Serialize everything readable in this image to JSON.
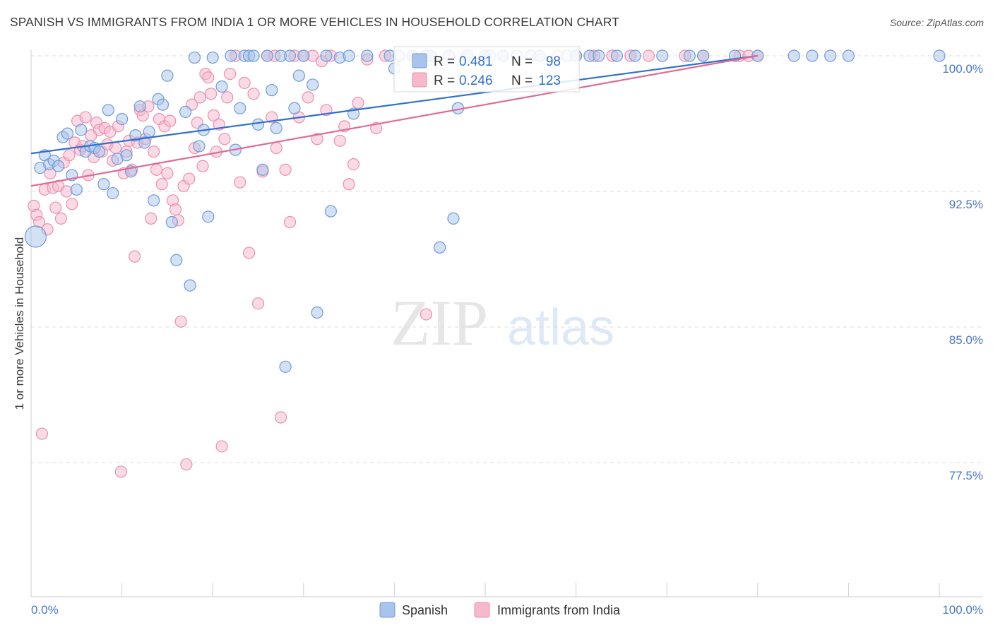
{
  "title": "SPANISH VS IMMIGRANTS FROM INDIA 1 OR MORE VEHICLES IN HOUSEHOLD CORRELATION CHART",
  "source": "Source: ZipAtlas.com",
  "watermark": {
    "zip": "ZIP",
    "atlas": "atlas"
  },
  "colors": {
    "spanish_fill": "#a8c4ec",
    "spanish_stroke": "#6f9bd8",
    "spanish_line": "#2f6fce",
    "india_fill": "#f6b8cb",
    "india_stroke": "#ec8fae",
    "india_line": "#e06a94",
    "tick_label": "#4a78c8",
    "grid": "#dcdcdc"
  },
  "chart_data": {
    "type": "scatter",
    "title": "SPANISH VS IMMIGRANTS FROM INDIA 1 OR MORE VEHICLES IN HOUSEHOLD CORRELATION CHART",
    "xlabel": "",
    "ylabel": "1 or more Vehicles in Household",
    "xlim": [
      0,
      100
    ],
    "ylim": [
      70.5,
      100.8
    ],
    "x_tick_labels": [
      "0.0%",
      "100.0%"
    ],
    "y_ticks": [
      77.5,
      85.0,
      92.5,
      100.0
    ],
    "y_tick_labels": [
      "77.5%",
      "85.0%",
      "92.5%",
      "100.0%"
    ],
    "grid": true,
    "legend_position": "bottom-center",
    "stats_box": [
      {
        "r_label": "R = ",
        "r_value": "0.481",
        "n_label": "N = ",
        "n_value": "98"
      },
      {
        "r_label": "R = ",
        "r_value": "0.246",
        "n_label": "N = ",
        "n_value": "123"
      }
    ],
    "series": [
      {
        "name": "Spanish",
        "trendline": {
          "x": [
            0,
            80
          ],
          "y": [
            94.6,
            100.0
          ]
        },
        "points": [
          [
            0.5,
            90.0
          ],
          [
            1.0,
            93.8
          ],
          [
            1.5,
            94.5
          ],
          [
            2.0,
            94.0
          ],
          [
            2.5,
            94.2
          ],
          [
            3.0,
            93.9
          ],
          [
            3.5,
            95.5
          ],
          [
            4.0,
            95.7
          ],
          [
            4.5,
            93.4
          ],
          [
            5.0,
            92.6
          ],
          [
            5.5,
            95.9
          ],
          [
            6.0,
            94.7
          ],
          [
            6.5,
            95.0
          ],
          [
            7.0,
            94.9
          ],
          [
            7.5,
            94.7
          ],
          [
            8.0,
            92.9
          ],
          [
            8.5,
            97.0
          ],
          [
            9.0,
            92.4
          ],
          [
            9.5,
            94.3
          ],
          [
            10.0,
            96.5
          ],
          [
            10.5,
            94.5
          ],
          [
            11.0,
            93.6
          ],
          [
            11.5,
            95.6
          ],
          [
            12.0,
            97.2
          ],
          [
            12.5,
            95.2
          ],
          [
            13.0,
            95.8
          ],
          [
            13.5,
            92.0
          ],
          [
            14.0,
            97.6
          ],
          [
            14.5,
            97.3
          ],
          [
            15.0,
            98.9
          ],
          [
            15.5,
            90.8
          ],
          [
            16.0,
            88.7
          ],
          [
            17.0,
            96.9
          ],
          [
            17.5,
            87.3
          ],
          [
            18.0,
            99.9
          ],
          [
            18.5,
            95.0
          ],
          [
            19.0,
            95.9
          ],
          [
            19.5,
            91.1
          ],
          [
            20.0,
            99.9
          ],
          [
            21.0,
            98.3
          ],
          [
            22.0,
            100.0
          ],
          [
            22.5,
            94.8
          ],
          [
            23.0,
            97.1
          ],
          [
            23.5,
            100.0
          ],
          [
            24.0,
            100.0
          ],
          [
            24.5,
            100.0
          ],
          [
            25.0,
            96.2
          ],
          [
            25.5,
            93.7
          ],
          [
            26.0,
            100.0
          ],
          [
            26.5,
            98.1
          ],
          [
            27.0,
            96.0
          ],
          [
            27.5,
            100.0
          ],
          [
            28.0,
            82.8
          ],
          [
            28.5,
            100.0
          ],
          [
            29.0,
            97.1
          ],
          [
            29.5,
            98.9
          ],
          [
            30.0,
            100.0
          ],
          [
            31.0,
            98.4
          ],
          [
            31.5,
            85.8
          ],
          [
            32.5,
            100.0
          ],
          [
            33.0,
            91.4
          ],
          [
            34.0,
            99.9
          ],
          [
            35.0,
            100.0
          ],
          [
            35.5,
            96.8
          ],
          [
            37.0,
            100.0
          ],
          [
            39.5,
            100.0
          ],
          [
            40.0,
            99.3
          ],
          [
            40.5,
            100.0
          ],
          [
            42.0,
            100.0
          ],
          [
            43.5,
            100.0
          ],
          [
            44.0,
            100.0
          ],
          [
            45.0,
            89.4
          ],
          [
            46.0,
            100.0
          ],
          [
            46.5,
            91.0
          ],
          [
            47.0,
            97.1
          ],
          [
            48.0,
            100.0
          ],
          [
            50.0,
            100.0
          ],
          [
            50.5,
            100.0
          ],
          [
            52.0,
            100.0
          ],
          [
            53.5,
            100.0
          ],
          [
            55.0,
            100.0
          ],
          [
            56.0,
            100.0
          ],
          [
            59.0,
            100.0
          ],
          [
            60.0,
            100.0
          ],
          [
            61.5,
            100.0
          ],
          [
            62.5,
            100.0
          ],
          [
            64.5,
            100.0
          ],
          [
            66.5,
            100.0
          ],
          [
            69.5,
            100.0
          ],
          [
            72.5,
            100.0
          ],
          [
            74.0,
            100.0
          ],
          [
            77.5,
            100.0
          ],
          [
            80.0,
            100.0
          ],
          [
            84.0,
            100.0
          ],
          [
            86.0,
            100.0
          ],
          [
            88.0,
            100.0
          ],
          [
            90.0,
            100.0
          ],
          [
            100.0,
            100.0
          ]
        ]
      },
      {
        "name": "Immigrants from India",
        "trendline": {
          "x": [
            0,
            80
          ],
          "y": [
            92.8,
            100.0
          ]
        },
        "points": [
          [
            0.3,
            91.7
          ],
          [
            0.6,
            91.2
          ],
          [
            0.9,
            90.8
          ],
          [
            1.2,
            79.1
          ],
          [
            1.5,
            92.6
          ],
          [
            1.8,
            90.4
          ],
          [
            2.1,
            93.5
          ],
          [
            2.4,
            92.7
          ],
          [
            2.7,
            91.6
          ],
          [
            3.0,
            92.8
          ],
          [
            3.3,
            91.0
          ],
          [
            3.6,
            94.1
          ],
          [
            3.9,
            92.5
          ],
          [
            4.2,
            94.5
          ],
          [
            4.5,
            91.8
          ],
          [
            4.8,
            95.2
          ],
          [
            5.1,
            96.4
          ],
          [
            5.4,
            94.8
          ],
          [
            5.7,
            95.0
          ],
          [
            6.0,
            96.6
          ],
          [
            6.3,
            93.4
          ],
          [
            6.6,
            95.6
          ],
          [
            6.9,
            94.4
          ],
          [
            7.2,
            96.3
          ],
          [
            7.5,
            95.9
          ],
          [
            7.8,
            94.7
          ],
          [
            8.1,
            96.0
          ],
          [
            8.4,
            95.1
          ],
          [
            8.7,
            95.8
          ],
          [
            9.0,
            94.2
          ],
          [
            9.3,
            94.9
          ],
          [
            9.6,
            96.1
          ],
          [
            9.9,
            77.0
          ],
          [
            10.2,
            93.5
          ],
          [
            10.5,
            94.7
          ],
          [
            10.8,
            95.3
          ],
          [
            11.1,
            93.7
          ],
          [
            11.4,
            88.9
          ],
          [
            11.7,
            95.2
          ],
          [
            12.0,
            97.0
          ],
          [
            12.3,
            96.7
          ],
          [
            12.6,
            95.4
          ],
          [
            12.9,
            97.2
          ],
          [
            13.2,
            91.0
          ],
          [
            13.5,
            94.7
          ],
          [
            13.8,
            93.7
          ],
          [
            14.1,
            96.5
          ],
          [
            14.4,
            92.9
          ],
          [
            14.7,
            96.1
          ],
          [
            15.0,
            93.5
          ],
          [
            15.3,
            96.4
          ],
          [
            15.6,
            92.0
          ],
          [
            15.9,
            91.5
          ],
          [
            16.2,
            90.9
          ],
          [
            16.5,
            85.3
          ],
          [
            16.8,
            92.8
          ],
          [
            17.1,
            77.4
          ],
          [
            17.4,
            93.2
          ],
          [
            17.7,
            97.3
          ],
          [
            18.0,
            94.9
          ],
          [
            18.3,
            96.3
          ],
          [
            18.6,
            97.7
          ],
          [
            18.9,
            93.9
          ],
          [
            19.2,
            99.0
          ],
          [
            19.5,
            98.8
          ],
          [
            19.8,
            97.9
          ],
          [
            20.1,
            96.7
          ],
          [
            20.4,
            94.7
          ],
          [
            20.7,
            96.2
          ],
          [
            21.0,
            78.4
          ],
          [
            21.3,
            95.4
          ],
          [
            21.6,
            97.7
          ],
          [
            21.9,
            99.0
          ],
          [
            22.5,
            100.0
          ],
          [
            23.0,
            93.0
          ],
          [
            23.5,
            98.5
          ],
          [
            24.0,
            89.1
          ],
          [
            24.5,
            97.9
          ],
          [
            25.0,
            86.3
          ],
          [
            25.5,
            93.6
          ],
          [
            26.0,
            100.0
          ],
          [
            26.5,
            96.6
          ],
          [
            27.0,
            94.9
          ],
          [
            27.5,
            80.0
          ],
          [
            28.0,
            93.7
          ],
          [
            28.5,
            90.8
          ],
          [
            29.0,
            100.0
          ],
          [
            29.5,
            96.6
          ],
          [
            30.0,
            100.0
          ],
          [
            30.5,
            97.7
          ],
          [
            31.0,
            100.0
          ],
          [
            31.5,
            95.4
          ],
          [
            32.0,
            99.7
          ],
          [
            32.5,
            97.0
          ],
          [
            33.0,
            100.0
          ],
          [
            34.0,
            95.3
          ],
          [
            34.5,
            96.1
          ],
          [
            35.0,
            92.9
          ],
          [
            35.5,
            94.0
          ],
          [
            36.0,
            97.4
          ],
          [
            37.0,
            99.8
          ],
          [
            38.0,
            96.0
          ],
          [
            39.0,
            100.0
          ],
          [
            42.0,
            100.0
          ],
          [
            43.5,
            85.7
          ],
          [
            44.0,
            100.0
          ],
          [
            46.0,
            100.0
          ],
          [
            48.0,
            100.0
          ],
          [
            50.0,
            100.0
          ],
          [
            52.0,
            100.0
          ],
          [
            56.0,
            100.0
          ],
          [
            58.0,
            100.0
          ],
          [
            60.0,
            100.0
          ],
          [
            62.0,
            100.0
          ],
          [
            64.0,
            100.0
          ],
          [
            66.0,
            100.0
          ],
          [
            68.0,
            100.0
          ],
          [
            72.0,
            100.0
          ],
          [
            74.0,
            100.0
          ],
          [
            78.0,
            100.0
          ],
          [
            79.0,
            100.0
          ],
          [
            80.0,
            100.0
          ],
          [
            26.8,
            100.0
          ]
        ]
      }
    ]
  }
}
